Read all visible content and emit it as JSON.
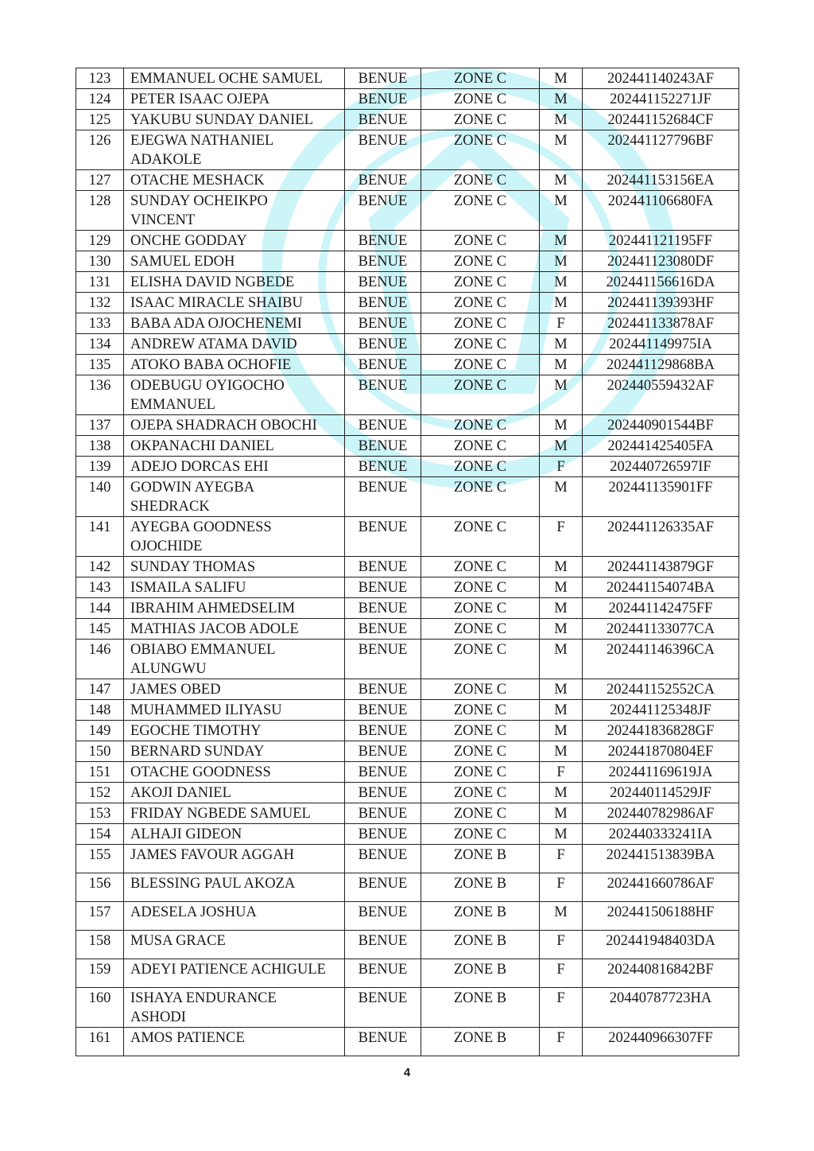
{
  "watermark_color": "#7fe6ee",
  "rows": [
    {
      "no": "123",
      "name": "EMMANUEL OCHE SAMUEL",
      "state": "BENUE",
      "zone": "ZONE C",
      "sex": "M",
      "id": "202441140243AF"
    },
    {
      "no": "124",
      "name": "PETER ISAAC OJEPA",
      "state": "BENUE",
      "zone": "ZONE C",
      "sex": "M",
      "id": "202441152271JF"
    },
    {
      "no": "125",
      "name": "YAKUBU SUNDAY DANIEL",
      "state": "BENUE",
      "zone": "ZONE C",
      "sex": "M",
      "id": "202441152684CF"
    },
    {
      "no": "126",
      "name": "EJEGWA NATHANIEL\nADAKOLE",
      "state": "BENUE",
      "zone": "ZONE C",
      "sex": "M",
      "id": "202441127796BF"
    },
    {
      "no": "127",
      "name": "OTACHE MESHACK",
      "state": "BENUE",
      "zone": "ZONE C",
      "sex": "M",
      "id": "202441153156EA"
    },
    {
      "no": "128",
      "name": "SUNDAY OCHEIKPO\nVINCENT",
      "state": "BENUE",
      "zone": "ZONE C",
      "sex": "M",
      "id": "202441106680FA"
    },
    {
      "no": "129",
      "name": "ONCHE GODDAY",
      "state": "BENUE",
      "zone": "ZONE C",
      "sex": "M",
      "id": "202441121195FF"
    },
    {
      "no": "130",
      "name": "SAMUEL EDOH",
      "state": "BENUE",
      "zone": "ZONE C",
      "sex": "M",
      "id": "202441123080DF"
    },
    {
      "no": "131",
      "name": "ELISHA DAVID NGBEDE",
      "state": "BENUE",
      "zone": "ZONE C",
      "sex": "M",
      "id": "202441156616DA"
    },
    {
      "no": "132",
      "name": "ISAAC MIRACLE SHAIBU",
      "state": "BENUE",
      "zone": "ZONE C",
      "sex": "M",
      "id": "202441139393HF"
    },
    {
      "no": "133",
      "name": "BABA ADA OJOCHENEMI",
      "state": "BENUE",
      "zone": "ZONE C",
      "sex": "F",
      "id": "202441133878AF"
    },
    {
      "no": "134",
      "name": "ANDREW ATAMA DAVID",
      "state": "BENUE",
      "zone": "ZONE C",
      "sex": "M",
      "id": "202441149975IA"
    },
    {
      "no": "135",
      "name": "ATOKO BABA OCHOFIE",
      "state": "BENUE",
      "zone": "ZONE C",
      "sex": "M",
      "id": "202441129868BA"
    },
    {
      "no": "136",
      "name": "ODEBUGU OYIGOCHO\nEMMANUEL",
      "state": "BENUE",
      "zone": "ZONE C",
      "sex": "M",
      "id": "202440559432AF"
    },
    {
      "no": "137",
      "name": "OJEPA SHADRACH OBOCHI",
      "state": "BENUE",
      "zone": "ZONE C",
      "sex": "M",
      "id": "202440901544BF"
    },
    {
      "no": "138",
      "name": "OKPANACHI DANIEL",
      "state": "BENUE",
      "zone": "ZONE C",
      "sex": "M",
      "id": "202441425405FA"
    },
    {
      "no": "139",
      "name": "ADEJO DORCAS EHI",
      "state": "BENUE",
      "zone": "ZONE C",
      "sex": "F",
      "id": "202440726597IF"
    },
    {
      "no": "140",
      "name": "GODWIN AYEGBA\nSHEDRACK",
      "state": "BENUE",
      "zone": "ZONE C",
      "sex": "M",
      "id": "202441135901FF"
    },
    {
      "no": "141",
      "name": "AYEGBA GOODNESS\nOJOCHIDE",
      "state": "BENUE",
      "zone": "ZONE C",
      "sex": "F",
      "id": "202441126335AF"
    },
    {
      "no": "142",
      "name": "SUNDAY THOMAS",
      "state": "BENUE",
      "zone": "ZONE C",
      "sex": "M",
      "id": "202441143879GF"
    },
    {
      "no": "143",
      "name": "ISMAILA SALIFU",
      "state": "BENUE",
      "zone": "ZONE C",
      "sex": "M",
      "id": "202441154074BA"
    },
    {
      "no": "144",
      "name": "IBRAHIM AHMEDSELIM",
      "state": "BENUE",
      "zone": "ZONE C",
      "sex": "M",
      "id": "202441142475FF"
    },
    {
      "no": "145",
      "name": "MATHIAS JACOB ADOLE",
      "state": "BENUE",
      "zone": "ZONE C",
      "sex": "M",
      "id": "202441133077CA"
    },
    {
      "no": "146",
      "name": "OBIABO EMMANUEL\nALUNGWU",
      "state": "BENUE",
      "zone": "ZONE C",
      "sex": "M",
      "id": "202441146396CA"
    },
    {
      "no": "147",
      "name": "JAMES OBED",
      "state": "BENUE",
      "zone": "ZONE C",
      "sex": "M",
      "id": "202441152552CA"
    },
    {
      "no": "148",
      "name": "MUHAMMED ILIYASU",
      "state": "BENUE",
      "zone": "ZONE C",
      "sex": "M",
      "id": "202441125348JF"
    },
    {
      "no": "149",
      "name": "EGOCHE TIMOTHY",
      "state": "BENUE",
      "zone": "ZONE C",
      "sex": "M",
      "id": "202441836828GF"
    },
    {
      "no": "150",
      "name": "BERNARD SUNDAY",
      "state": "BENUE",
      "zone": "ZONE C",
      "sex": "M",
      "id": "202441870804EF"
    },
    {
      "no": "151",
      "name": "OTACHE GOODNESS",
      "state": "BENUE",
      "zone": "ZONE C",
      "sex": "F",
      "id": "202441169619JA"
    },
    {
      "no": "152",
      "name": "AKOJI DANIEL",
      "state": "BENUE",
      "zone": "ZONE C",
      "sex": "M",
      "id": "202440114529JF"
    },
    {
      "no": "153",
      "name": "FRIDAY NGBEDE SAMUEL",
      "state": "BENUE",
      "zone": "ZONE C",
      "sex": "M",
      "id": "202440782986AF"
    },
    {
      "no": "154",
      "name": "ALHAJI GIDEON",
      "state": "BENUE",
      "zone": "ZONE C",
      "sex": "M",
      "id": "202440333241IA"
    },
    {
      "no": "155",
      "name": "JAMES FAVOUR AGGAH",
      "state": "BENUE",
      "zone": "ZONE B",
      "sex": "F",
      "id": "202441513839BA"
    },
    {
      "no": "156",
      "name": "BLESSING PAUL AKOZA",
      "state": "BENUE",
      "zone": "ZONE B",
      "sex": "F",
      "id": "202441660786AF"
    },
    {
      "no": "157",
      "name": "ADESELA JOSHUA",
      "state": "BENUE",
      "zone": "ZONE B",
      "sex": "M",
      "id": "202441506188HF"
    },
    {
      "no": "158",
      "name": "MUSA GRACE",
      "state": "BENUE",
      "zone": "ZONE B",
      "sex": "F",
      "id": "202441948403DA"
    },
    {
      "no": "159",
      "name": "ADEYI PATIENCE ACHIGULE",
      "state": "BENUE",
      "zone": "ZONE B",
      "sex": "F",
      "id": "202440816842BF"
    },
    {
      "no": "160",
      "name": "ISHAYA ENDURANCE\nASHODI",
      "state": "BENUE",
      "zone": "ZONE B",
      "sex": "F",
      "id": "20440787723HA"
    },
    {
      "no": "161",
      "name": "AMOS PATIENCE",
      "state": "BENUE",
      "zone": "ZONE B",
      "sex": "F",
      "id": "202440966307FF"
    }
  ],
  "page_number": "4"
}
